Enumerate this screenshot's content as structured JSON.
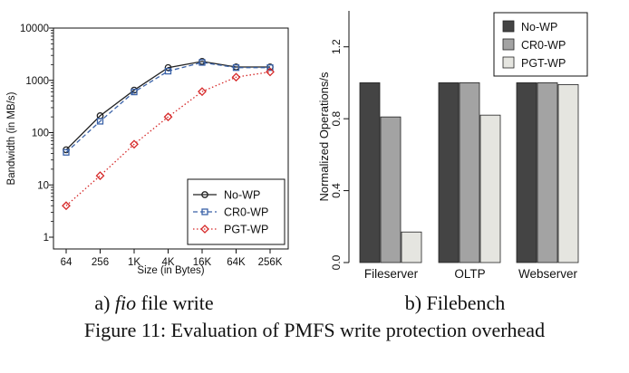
{
  "figure": {
    "caption": "Figure 11: Evaluation of PMFS write protection overhead",
    "subcaption_a_prefix": "a) ",
    "subcaption_a_italic": "fio",
    "subcaption_a_suffix": " file write",
    "subcaption_b": "b) Filebench"
  },
  "chart_data": [
    {
      "type": "line",
      "xlabel": "Size (in Bytes)",
      "ylabel": "Bandwidth (in MB/s)",
      "yscale": "log",
      "ylim": [
        1,
        10000
      ],
      "y_ticks": [
        1,
        10,
        100,
        1000,
        10000
      ],
      "y_tick_labels": [
        "1",
        "10",
        "100",
        "1000",
        "10000"
      ],
      "categories": [
        "64",
        "256",
        "1K",
        "4K",
        "16K",
        "64K",
        "256K"
      ],
      "legend_position": "bottom-right",
      "grid": false,
      "series": [
        {
          "name": "No-WP",
          "color": "#222222",
          "marker": "circle",
          "dash": "solid",
          "values": [
            47,
            210,
            650,
            1750,
            2300,
            1800,
            1800
          ]
        },
        {
          "name": "CR0-WP",
          "color": "#3a62a8",
          "marker": "square",
          "dash": "dashed",
          "values": [
            42,
            165,
            600,
            1500,
            2200,
            1750,
            1750
          ]
        },
        {
          "name": "PGT-WP",
          "color": "#d62a2a",
          "marker": "diamond",
          "dash": "dotted",
          "values": [
            4,
            15,
            60,
            200,
            610,
            1150,
            1450
          ]
        }
      ]
    },
    {
      "type": "bar",
      "ylabel": "Normalized Operations/s",
      "ylim": [
        0,
        1.4
      ],
      "y_ticks": [
        0.0,
        0.4,
        0.8,
        1.2
      ],
      "y_tick_labels": [
        "0.0",
        "0.4",
        "0.8",
        "1.2"
      ],
      "categories": [
        "Fileserver",
        "OLTP",
        "Webserver"
      ],
      "legend_position": "top-right",
      "grid": false,
      "series": [
        {
          "name": "No-WP",
          "color": "#444444",
          "values": [
            1.0,
            1.0,
            1.0
          ]
        },
        {
          "name": "CR0-WP",
          "color": "#a3a3a3",
          "values": [
            0.81,
            1.0,
            1.0
          ]
        },
        {
          "name": "PGT-WP",
          "color": "#e5e5e0",
          "values": [
            0.17,
            0.82,
            0.99
          ]
        }
      ]
    }
  ]
}
